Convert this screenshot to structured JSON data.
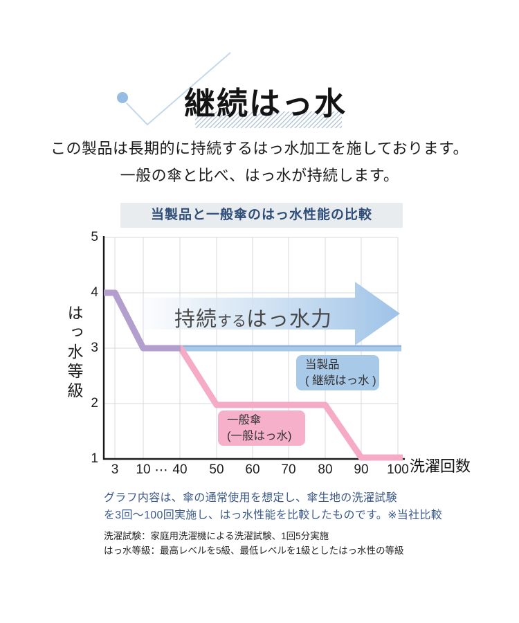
{
  "header": {
    "title": "継続はっ水",
    "description_line1": "この製品は長期的に持続するはっ水加工を施しております。",
    "description_line2": "一般の傘と比べ、はっ水が持続します。"
  },
  "chart": {
    "title": "当製品と一般傘のはっ水性能の比較",
    "y_axis_label": "はっ水等級",
    "x_axis_label": "洗濯回数",
    "arrow_label": {
      "part1": "持続",
      "part2": "する",
      "part3": "はっ水力"
    },
    "series_labels": {
      "product_line1": "当製品",
      "product_line2": "( 継続はっ水 )",
      "general_line1": "一般傘",
      "general_line2": "(一般はっ水)"
    }
  },
  "chart_data": {
    "type": "line",
    "title": "当製品と一般傘のはっ水性能の比較",
    "xlabel": "洗濯回数",
    "ylabel": "はっ水等級",
    "x_ticks": [
      "3",
      "10",
      "⋯",
      "40",
      "50",
      "60",
      "70",
      "80",
      "90",
      "100"
    ],
    "y_ticks": [
      "5",
      "4",
      "3",
      "2",
      "1"
    ],
    "ylim": [
      1,
      5
    ],
    "x_axis_break": "between 10 and 40",
    "grid": true,
    "series": [
      {
        "name": "当製品（継続はっ水）",
        "color": "#a8c8e8",
        "x": [
          3,
          10,
          40,
          50,
          60,
          70,
          80,
          90,
          100
        ],
        "y": [
          4,
          3,
          3,
          3,
          3,
          3,
          3,
          3,
          3
        ]
      },
      {
        "name": "一般傘（一般はっ水）",
        "color": "#f5abc6",
        "x": [
          3,
          10,
          40,
          50,
          60,
          70,
          80,
          90,
          100
        ],
        "y": [
          4,
          3,
          3,
          2,
          2,
          2,
          2,
          1,
          1
        ]
      }
    ],
    "annotation": "持続するはっ水力（右向き矢印）"
  },
  "footnotes": {
    "graph_note_line1": "グラフ内容は、傘の通常使用を想定し、傘生地の洗濯試験",
    "graph_note_line2": "を3回〜100回実施し、はっ水性能を比較したものです。※当社比較",
    "small_note_line1": "洗濯試験：家庭用洗濯機による洗濯試験、1回5分実施",
    "small_note_line2": "はっ水等級：最高レベルを5級、最低レベルを1級としたはっ水性の等級"
  },
  "colors": {
    "product_line_blue": "#a8c8e8",
    "product_line_core": "#8ab0da",
    "general_line_pink": "#f5abc6",
    "overlap_purple": "#b29fce",
    "arrow_blue": "#9dc2e7",
    "deco_dot_blue": "#97bce4",
    "deco_line_blue": "#c3d8ec",
    "chart_title_navy": "#2e4d78",
    "note_blue": "#3b5a8a",
    "title_bar_bg": "#e9ecef",
    "gridline": "#d4d8dc"
  }
}
